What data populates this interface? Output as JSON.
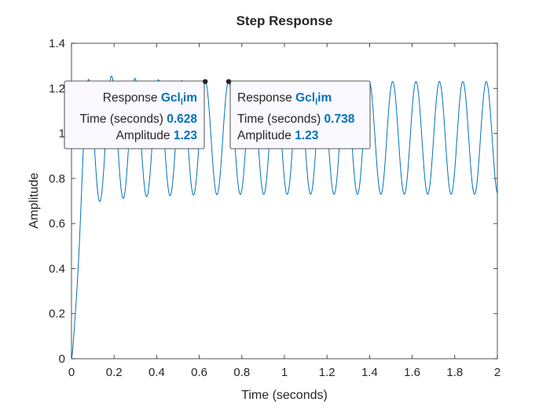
{
  "chart_data": {
    "type": "line",
    "title": "Step Response",
    "xlabel": "Time (seconds)",
    "ylabel": "Amplitude",
    "xlim": [
      0,
      2
    ],
    "ylim": [
      0,
      1.4
    ],
    "x_ticks": [
      "0",
      "0.2",
      "0.4",
      "0.6",
      "0.8",
      "1",
      "1.2",
      "1.4",
      "1.6",
      "1.8",
      "2"
    ],
    "y_ticks": [
      "0",
      "0.2",
      "0.4",
      "0.6",
      "0.8",
      "1",
      "1.2",
      "1.4"
    ],
    "grid": false,
    "series": [
      {
        "name": "Gcl_lim",
        "color": "#0072BD",
        "model": {
          "steady_state": 0.98,
          "osc_amplitude": 0.25,
          "osc_period_s": 0.11,
          "first_peak_s": 0.078,
          "envelope_tau_s": 0.2,
          "initial_overshoot_boost": 0.25
        }
      }
    ],
    "datatips": [
      {
        "response_label": "Response",
        "response_name": "Gcl",
        "response_subscript": "l",
        "response_suffix": "im",
        "time_label": "Time (seconds)",
        "time_value": "0.628",
        "amp_label": "Amplitude",
        "amp_value": "1.23",
        "marker": {
          "x": 0.628,
          "y": 1.23
        }
      },
      {
        "response_label": "Response",
        "response_name": "Gcl",
        "response_subscript": "l",
        "response_suffix": "im",
        "time_label": "Time (seconds)",
        "time_value": "0.738",
        "amp_label": "Amplitude",
        "amp_value": "1.23",
        "marker": {
          "x": 0.738,
          "y": 1.23
        }
      }
    ]
  }
}
